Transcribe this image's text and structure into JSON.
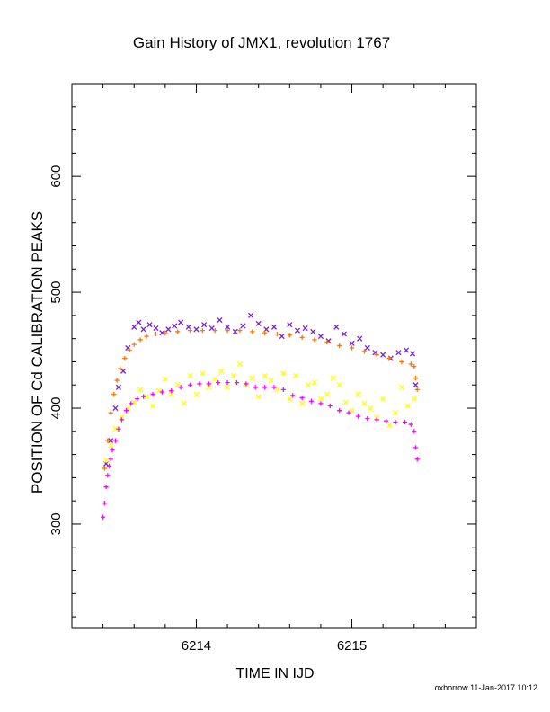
{
  "chart_data": {
    "type": "scatter",
    "title": "Gain History of JMX1, revolution 1767",
    "xlabel": "TIME IN IJD",
    "ylabel": "POSITION OF Cd CALIBRATION PEAKS",
    "xlim": [
      6213.2,
      6215.8
    ],
    "ylim": [
      210,
      680
    ],
    "x_ticks": [
      "6214",
      "6215"
    ],
    "y_ticks": [
      "300",
      "400",
      "500",
      "600"
    ],
    "grid": false,
    "legend": "none",
    "series": [
      {
        "marker": "x",
        "color": "#7b1fd6",
        "x": [
          6213.42,
          6213.45,
          6213.48,
          6213.5,
          6213.53,
          6213.56,
          6213.6,
          6213.63,
          6213.66,
          6213.7,
          6213.74,
          6213.78,
          6213.82,
          6213.86,
          6213.9,
          6213.95,
          6214.0,
          6214.05,
          6214.1,
          6214.15,
          6214.2,
          6214.25,
          6214.3,
          6214.35,
          6214.4,
          6214.45,
          6214.5,
          6214.55,
          6214.6,
          6214.65,
          6214.7,
          6214.75,
          6214.8,
          6214.85,
          6214.9,
          6214.95,
          6215.0,
          6215.05,
          6215.1,
          6215.15,
          6215.2,
          6215.25,
          6215.3,
          6215.35,
          6215.39,
          6215.41
        ],
        "y": [
          352,
          372,
          400,
          418,
          432,
          452,
          470,
          474,
          468,
          472,
          469,
          465,
          468,
          471,
          474,
          470,
          468,
          472,
          469,
          476,
          470,
          466,
          471,
          480,
          473,
          468,
          470,
          462,
          472,
          467,
          469,
          466,
          462,
          458,
          470,
          464,
          456,
          460,
          452,
          448,
          446,
          443,
          448,
          450,
          447,
          420
        ]
      },
      {
        "marker": "+",
        "color": "#ff7700",
        "x": [
          6213.41,
          6213.43,
          6213.45,
          6213.47,
          6213.49,
          6213.51,
          6213.54,
          6213.57,
          6213.6,
          6213.64,
          6213.68,
          6213.74,
          6213.8,
          6213.88,
          6213.96,
          6214.04,
          6214.12,
          6214.2,
          6214.28,
          6214.36,
          6214.44,
          6214.52,
          6214.6,
          6214.68,
          6214.76,
          6214.84,
          6214.92,
          6215.0,
          6215.08,
          6215.16,
          6215.24,
          6215.32,
          6215.38,
          6215.4,
          6215.41,
          6215.42
        ],
        "y": [
          348,
          372,
          396,
          412,
          424,
          434,
          443,
          450,
          455,
          459,
          462,
          464,
          465,
          466,
          467,
          467,
          467,
          467,
          467,
          466,
          465,
          464,
          463,
          461,
          459,
          457,
          454,
          452,
          449,
          446,
          443,
          440,
          438,
          436,
          426,
          416
        ]
      },
      {
        "marker": "x",
        "color": "#ffff00",
        "x": [
          6213.42,
          6213.45,
          6213.48,
          6213.52,
          6213.56,
          6213.6,
          6213.64,
          6213.68,
          6213.72,
          6213.76,
          6213.8,
          6213.84,
          6213.88,
          6213.92,
          6213.96,
          6214.0,
          6214.04,
          6214.08,
          6214.12,
          6214.16,
          6214.2,
          6214.24,
          6214.28,
          6214.32,
          6214.36,
          6214.4,
          6214.44,
          6214.48,
          6214.52,
          6214.56,
          6214.6,
          6214.64,
          6214.68,
          6214.72,
          6214.76,
          6214.8,
          6214.84,
          6214.88,
          6214.92,
          6214.96,
          6215.0,
          6215.04,
          6215.08,
          6215.12,
          6215.16,
          6215.2,
          6215.24,
          6215.28,
          6215.32,
          6215.36,
          6215.4
        ],
        "y": [
          355,
          368,
          382,
          392,
          400,
          405,
          416,
          410,
          402,
          415,
          425,
          412,
          420,
          404,
          428,
          412,
          430,
          418,
          425,
          432,
          418,
          428,
          438,
          420,
          426,
          410,
          428,
          424,
          416,
          430,
          408,
          428,
          404,
          420,
          422,
          408,
          412,
          426,
          420,
          405,
          398,
          412,
          404,
          400,
          392,
          408,
          385,
          396,
          418,
          402,
          408
        ]
      },
      {
        "marker": "+",
        "color": "#ff00ff",
        "x": [
          6213.4,
          6213.41,
          6213.42,
          6213.43,
          6213.44,
          6213.45,
          6213.46,
          6213.48,
          6213.5,
          6213.52,
          6213.55,
          6213.58,
          6213.62,
          6213.66,
          6213.72,
          6213.78,
          6213.84,
          6213.9,
          6213.96,
          6214.02,
          6214.08,
          6214.14,
          6214.2,
          6214.26,
          6214.32,
          6214.38,
          6214.44,
          6214.5,
          6214.56,
          6214.62,
          6214.68,
          6214.74,
          6214.8,
          6214.86,
          6214.92,
          6214.98,
          6215.04,
          6215.1,
          6215.16,
          6215.22,
          6215.28,
          6215.34,
          6215.38,
          6215.4,
          6215.41,
          6215.42
        ],
        "y": [
          306,
          318,
          332,
          342,
          350,
          356,
          364,
          372,
          382,
          390,
          398,
          404,
          408,
          410,
          412,
          414,
          415,
          418,
          420,
          421,
          421,
          422,
          422,
          422,
          421,
          418,
          418,
          418,
          416,
          411,
          409,
          406,
          404,
          402,
          398,
          396,
          393,
          391,
          390,
          389,
          388,
          388,
          386,
          380,
          366,
          356
        ]
      }
    ]
  },
  "footer": {
    "stamp": "oxborrow 11-Jan-2017 10:12"
  }
}
